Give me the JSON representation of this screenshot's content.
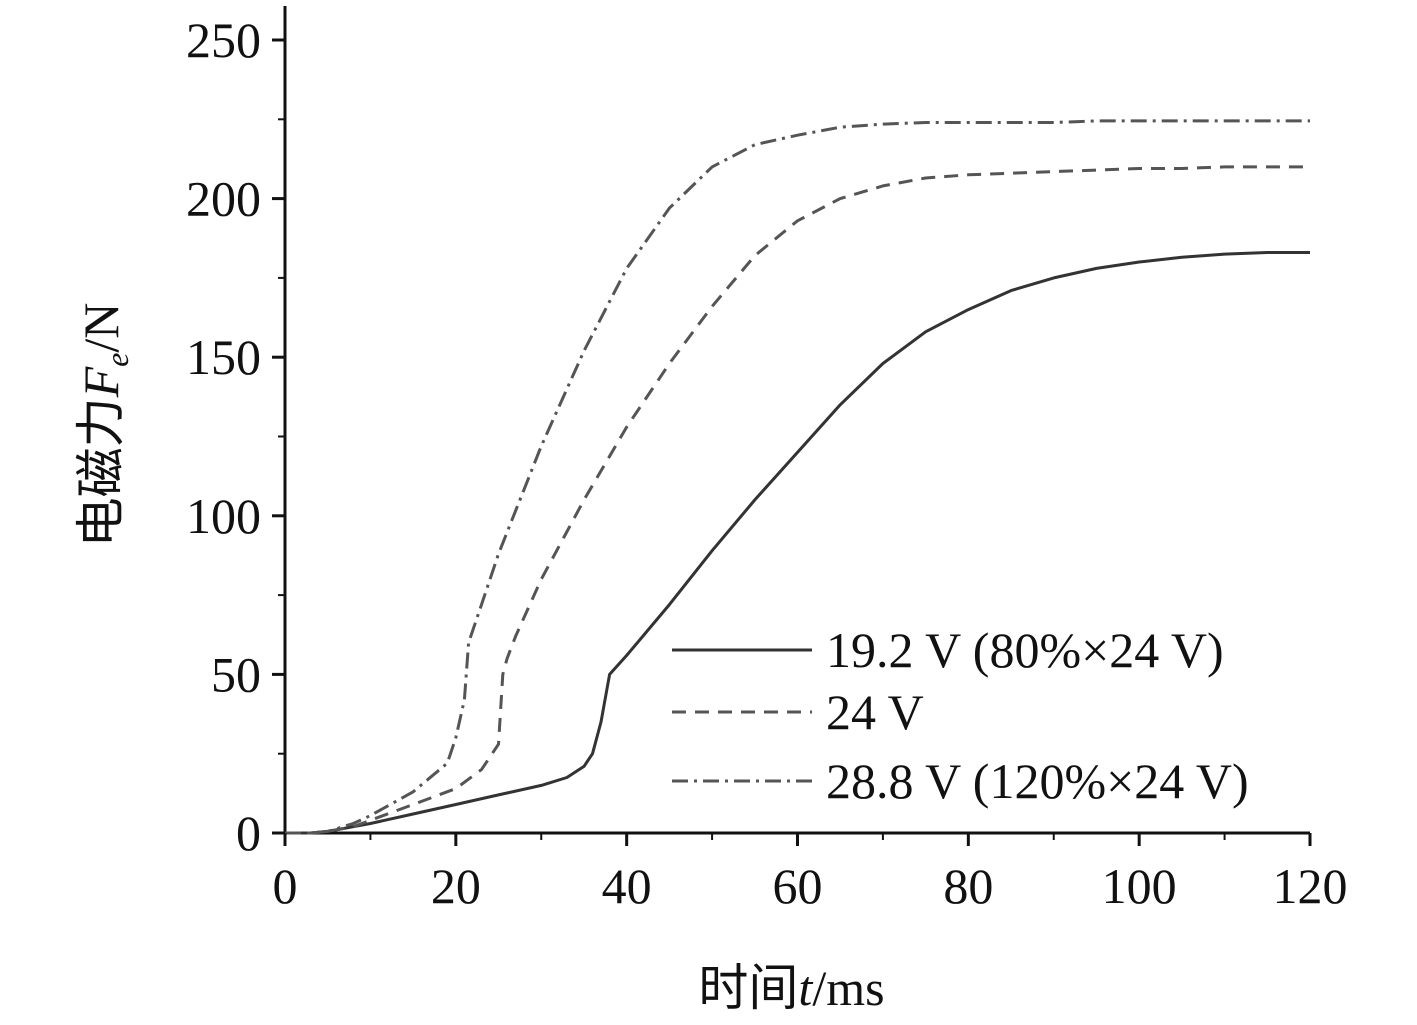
{
  "chart_data": {
    "type": "line",
    "xlabel": "时间t/ms",
    "ylabel": "电磁力Fe/N",
    "xlabel_parts": {
      "prefix": "时间",
      "var": "t",
      "suffix": "/ms"
    },
    "ylabel_parts": {
      "prefix": "电磁力",
      "var": "F",
      "sub": "e",
      "suffix": "/N"
    },
    "xlim": [
      0,
      120
    ],
    "ylim": [
      0,
      260
    ],
    "x_ticks": [
      0,
      20,
      40,
      60,
      80,
      100,
      120
    ],
    "y_ticks": [
      0,
      50,
      100,
      150,
      200,
      250
    ],
    "x_tick_labels": [
      "0",
      "20",
      "40",
      "60",
      "80",
      "100",
      "120"
    ],
    "y_tick_labels": [
      "0",
      "50",
      "100",
      "150",
      "200",
      "250"
    ],
    "grid": false,
    "legend_position": "bottom-right",
    "series": [
      {
        "name": "19.2 V (80%×24 V)",
        "style": "solid",
        "color": "#333333",
        "x": [
          0,
          3,
          5,
          8,
          10,
          15,
          20,
          25,
          30,
          33,
          35,
          36,
          37,
          38,
          40,
          45,
          50,
          55,
          60,
          65,
          70,
          75,
          80,
          85,
          90,
          95,
          100,
          105,
          110,
          115,
          120
        ],
        "y": [
          0,
          0,
          0.5,
          2,
          3,
          6,
          9,
          12,
          15,
          17.5,
          21,
          25,
          35,
          50,
          56,
          72,
          89,
          105,
          120,
          135,
          148,
          158,
          165,
          171,
          175,
          178,
          180,
          181.5,
          182.5,
          183,
          183
        ]
      },
      {
        "name": "24 V",
        "style": "dashed",
        "color": "#555555",
        "x": [
          0,
          3,
          5,
          8,
          10,
          15,
          20,
          23,
          25,
          25.5,
          26,
          27,
          30,
          35,
          40,
          45,
          50,
          55,
          60,
          65,
          70,
          75,
          80,
          85,
          90,
          95,
          100,
          105,
          110,
          115,
          120
        ],
        "y": [
          0,
          0,
          0.5,
          2,
          4,
          9,
          14,
          20,
          28,
          50,
          55,
          62,
          80,
          105,
          128,
          148,
          166,
          182,
          193,
          200,
          204,
          206.5,
          207.5,
          208,
          208.5,
          209,
          209.5,
          209.5,
          210,
          210,
          210
        ]
      },
      {
        "name": "28.8 V (120%×24 V)",
        "style": "dashdot",
        "color": "#555555",
        "x": [
          0,
          3,
          5,
          8,
          10,
          15,
          19,
          20,
          21,
          21.5,
          22,
          23,
          25,
          30,
          35,
          40,
          45,
          50,
          55,
          60,
          65,
          70,
          75,
          80,
          85,
          90,
          95,
          100,
          110,
          120
        ],
        "y": [
          0,
          0,
          0.5,
          3,
          5.5,
          13,
          22,
          30,
          42,
          60,
          64,
          72,
          88,
          122,
          152,
          178,
          197,
          210,
          217,
          220,
          222.5,
          223.5,
          224,
          224,
          224,
          224,
          224.5,
          224.5,
          224.5,
          224.5
        ]
      }
    ]
  }
}
